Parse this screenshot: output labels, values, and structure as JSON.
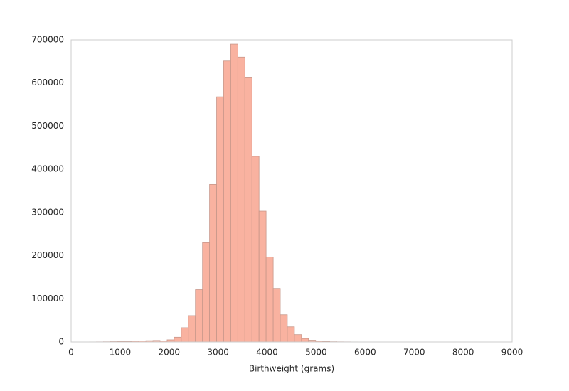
{
  "chart_data": {
    "type": "histogram",
    "xlabel": "Birthweight (grams)",
    "bins": [
      227,
      371,
      516,
      660,
      804,
      949,
      1093,
      1237,
      1381,
      1526,
      1670,
      1815,
      1959,
      2103,
      2248,
      2392,
      2536,
      2681,
      2825,
      2969,
      3113,
      3258,
      3402,
      3546,
      3691,
      3835,
      3979,
      4124,
      4268,
      4412,
      4557,
      4701,
      4845,
      4990,
      5134,
      5278,
      5423,
      5567,
      5711,
      5856,
      6000,
      6144,
      6289,
      6433,
      6577,
      6722,
      6866,
      7010,
      7154,
      7299,
      7443,
      7587,
      7732,
      7876,
      8020,
      8165
    ],
    "counts": [
      100,
      200,
      300,
      500,
      800,
      1200,
      1500,
      2000,
      2500,
      3000,
      3500,
      2500,
      5000,
      11000,
      33000,
      61000,
      121000,
      230000,
      365000,
      568000,
      651000,
      690000,
      660000,
      612000,
      430000,
      303000,
      197000,
      124000,
      63000,
      35000,
      17000,
      8000,
      4000,
      2000,
      1000,
      600,
      400,
      300,
      200,
      150,
      120,
      100,
      80,
      60,
      50,
      40,
      30,
      30,
      20,
      20,
      10,
      10,
      10,
      10,
      10
    ],
    "color": "#f9b2a0",
    "edgecolor": "#c8978a",
    "xlim": [
      0,
      9000
    ],
    "xticks": [
      0,
      1000,
      2000,
      3000,
      4000,
      5000,
      6000,
      7000,
      8000,
      9000
    ],
    "ylim": [
      0,
      700000
    ],
    "yticks": [
      0,
      100000,
      200000,
      300000,
      400000,
      500000,
      600000,
      700000
    ],
    "grid": false
  }
}
